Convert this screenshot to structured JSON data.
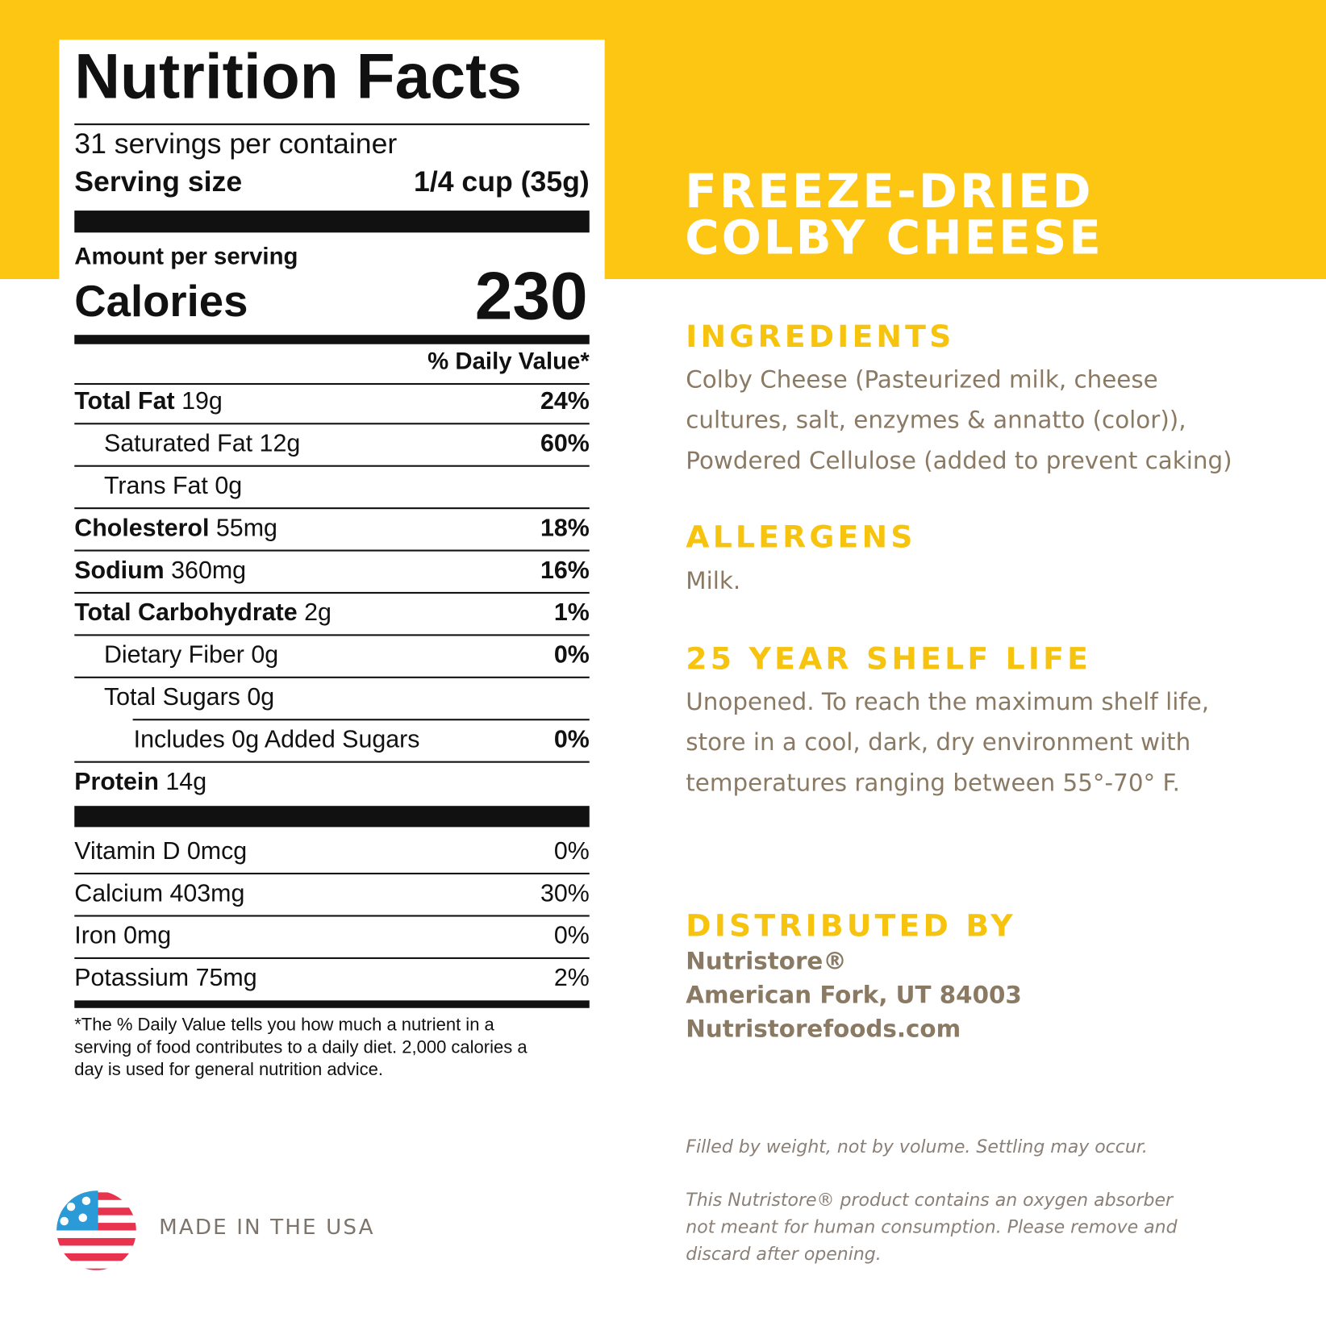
{
  "nutrition_facts": {
    "title": "Nutrition Facts",
    "servings": "31 servings per container",
    "serving_size_label": "Serving size",
    "serving_size": "1/4 cup (35g)",
    "amount_per_serving": "Amount per serving",
    "calories_label": "Calories",
    "calories": 230,
    "daily_value_header": "% Daily Value*",
    "nutrients": [
      {
        "name": "Total Fat",
        "amount": "19g",
        "dv": "24%"
      },
      {
        "name": "Saturated Fat",
        "amount": "12g",
        "dv": "60%"
      },
      {
        "name": "Trans Fat",
        "amount": "0g"
      },
      {
        "name": "Cholesterol",
        "amount": "55mg",
        "dv": "18%"
      },
      {
        "name": "Sodium",
        "amount": "360mg",
        "dv": "16%"
      },
      {
        "name": "Total Carbohydrate",
        "amount": "2g",
        "dv": "1%"
      },
      {
        "name": "Dietary Fiber",
        "amount": "0g",
        "dv": "0%"
      },
      {
        "name": "Total Sugars",
        "amount": "0g"
      },
      {
        "name": "Includes 0g Added Sugars",
        "dv": "0%"
      },
      {
        "name": "Protein",
        "amount": "14g"
      }
    ],
    "vitamins": [
      {
        "name": "Vitamin D",
        "amount": "0mcg",
        "dv": "0%"
      },
      {
        "name": "Calcium",
        "amount": "403mg",
        "dv": "30%"
      },
      {
        "name": "Iron",
        "amount": "0mg",
        "dv": "0%"
      },
      {
        "name": "Potassium",
        "amount": "75mg",
        "dv": "2%"
      }
    ],
    "footnote": [
      "*The % Daily Value tells you how much a nutrient in a",
      "serving of food contributes to a daily diet. 2,000 calories a",
      "day is used for general nutrition advice."
    ]
  },
  "product": {
    "title": [
      "FREEZE-DRIED",
      "COLBY CHEESE"
    ],
    "sections": [
      {
        "heading": "INGREDIENTS",
        "lines": [
          "Colby Cheese (Pasteurized milk, cheese",
          "cultures, salt, enzymes & annatto (color)),",
          "Powdered Cellulose (added to prevent caking)"
        ]
      },
      {
        "heading": "ALLERGENS",
        "lines": [
          "Milk."
        ]
      },
      {
        "heading": "25 YEAR SHELF LIFE",
        "lines": [
          "Unopened. To reach the maximum shelf life,",
          "store in a cool, dark, dry environment with",
          "temperatures ranging between 55°-70° F."
        ]
      },
      {
        "heading": "DISTRIBUTED BY",
        "lines": [
          "Nutristore®",
          "American Fork, UT 84003",
          "Nutristorefoods.com"
        ]
      }
    ],
    "notes": [
      [
        "Filled by weight, not by volume. Settling may occur."
      ],
      [
        "This Nutristore®  product contains an oxygen absorber",
        "not meant for human consumption.  Please remove and",
        "discard after opening."
      ]
    ],
    "origin": "MADE IN THE USA"
  }
}
